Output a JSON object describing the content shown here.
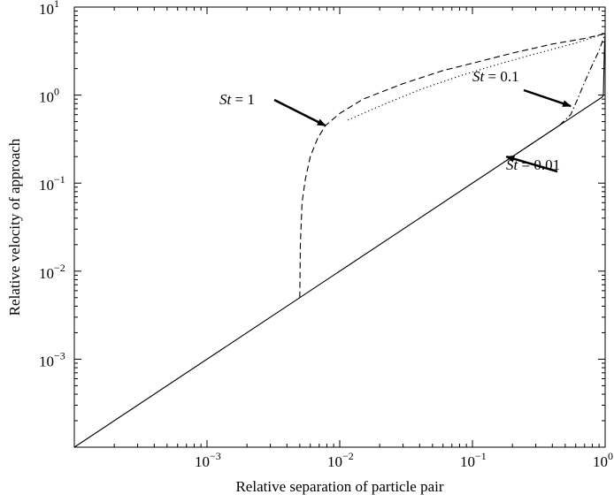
{
  "chart_data": {
    "type": "line",
    "title": "",
    "xlabel": "Relative separation of particle pair",
    "ylabel": "Relative velocity of approach",
    "xscale": "log",
    "yscale": "log",
    "xlim": [
      0.0001,
      1
    ],
    "ylim": [
      0.0001,
      10
    ],
    "grid": false,
    "legend": "none",
    "x_tick_labels": [
      {
        "value": 0.001,
        "base": "10",
        "exp": "−3"
      },
      {
        "value": 0.01,
        "base": "10",
        "exp": "−2"
      },
      {
        "value": 0.1,
        "base": "10",
        "exp": "−1"
      },
      {
        "value": 1,
        "base": "10",
        "exp": "0"
      }
    ],
    "y_tick_labels": [
      {
        "value": 0.001,
        "base": "10",
        "exp": "−3"
      },
      {
        "value": 0.01,
        "base": "10",
        "exp": "−2"
      },
      {
        "value": 0.1,
        "base": "10",
        "exp": "−1"
      },
      {
        "value": 1,
        "base": "10",
        "exp": "0"
      },
      {
        "value": 10,
        "base": "10",
        "exp": "1"
      }
    ],
    "series": [
      {
        "style": "solid",
        "points": [
          [
            0.0001,
            0.0001
          ],
          [
            0.5,
            0.5
          ],
          [
            0.95,
            0.95
          ],
          [
            0.97,
            1.0
          ],
          [
            0.985,
            3.0
          ],
          [
            1.0,
            5.0
          ]
        ]
      },
      {
        "style": "dashed",
        "points": [
          [
            0.005,
            0.005
          ],
          [
            0.00505,
            0.02
          ],
          [
            0.0052,
            0.06
          ],
          [
            0.0055,
            0.11
          ],
          [
            0.006,
            0.2
          ],
          [
            0.0068,
            0.32
          ],
          [
            0.0078,
            0.45
          ],
          [
            0.01,
            0.62
          ],
          [
            0.015,
            0.9
          ],
          [
            0.03,
            1.35
          ],
          [
            0.06,
            1.9
          ],
          [
            0.1,
            2.3
          ],
          [
            0.2,
            3.0
          ],
          [
            0.4,
            3.8
          ],
          [
            0.7,
            4.4
          ],
          [
            1.0,
            5.0
          ]
        ]
      },
      {
        "style": "dotted",
        "points": [
          [
            0.0115,
            0.52
          ],
          [
            0.02,
            0.75
          ],
          [
            0.04,
            1.15
          ],
          [
            0.08,
            1.65
          ],
          [
            0.15,
            2.2
          ],
          [
            0.3,
            2.95
          ],
          [
            0.6,
            3.9
          ],
          [
            1.0,
            5.0
          ]
        ]
      },
      {
        "style": "dashdot",
        "points": [
          [
            0.18,
            0.18
          ],
          [
            0.3,
            0.3
          ],
          [
            0.45,
            0.45
          ],
          [
            0.55,
            0.6
          ],
          [
            0.62,
            0.9
          ],
          [
            0.7,
            1.4
          ],
          [
            0.8,
            2.2
          ],
          [
            0.9,
            3.2
          ],
          [
            1.0,
            5.0
          ]
        ]
      }
    ],
    "annotations": [
      {
        "stname": "St",
        "rest": " = 1",
        "arrow_to": [
          0.0078,
          0.45
        ]
      },
      {
        "stname": "St",
        "rest": " = 0.1",
        "arrow_to": [
          0.55,
          0.75
        ]
      },
      {
        "stname": "St",
        "rest": " = 0.01",
        "arrow_to": [
          0.18,
          0.2
        ]
      }
    ]
  }
}
